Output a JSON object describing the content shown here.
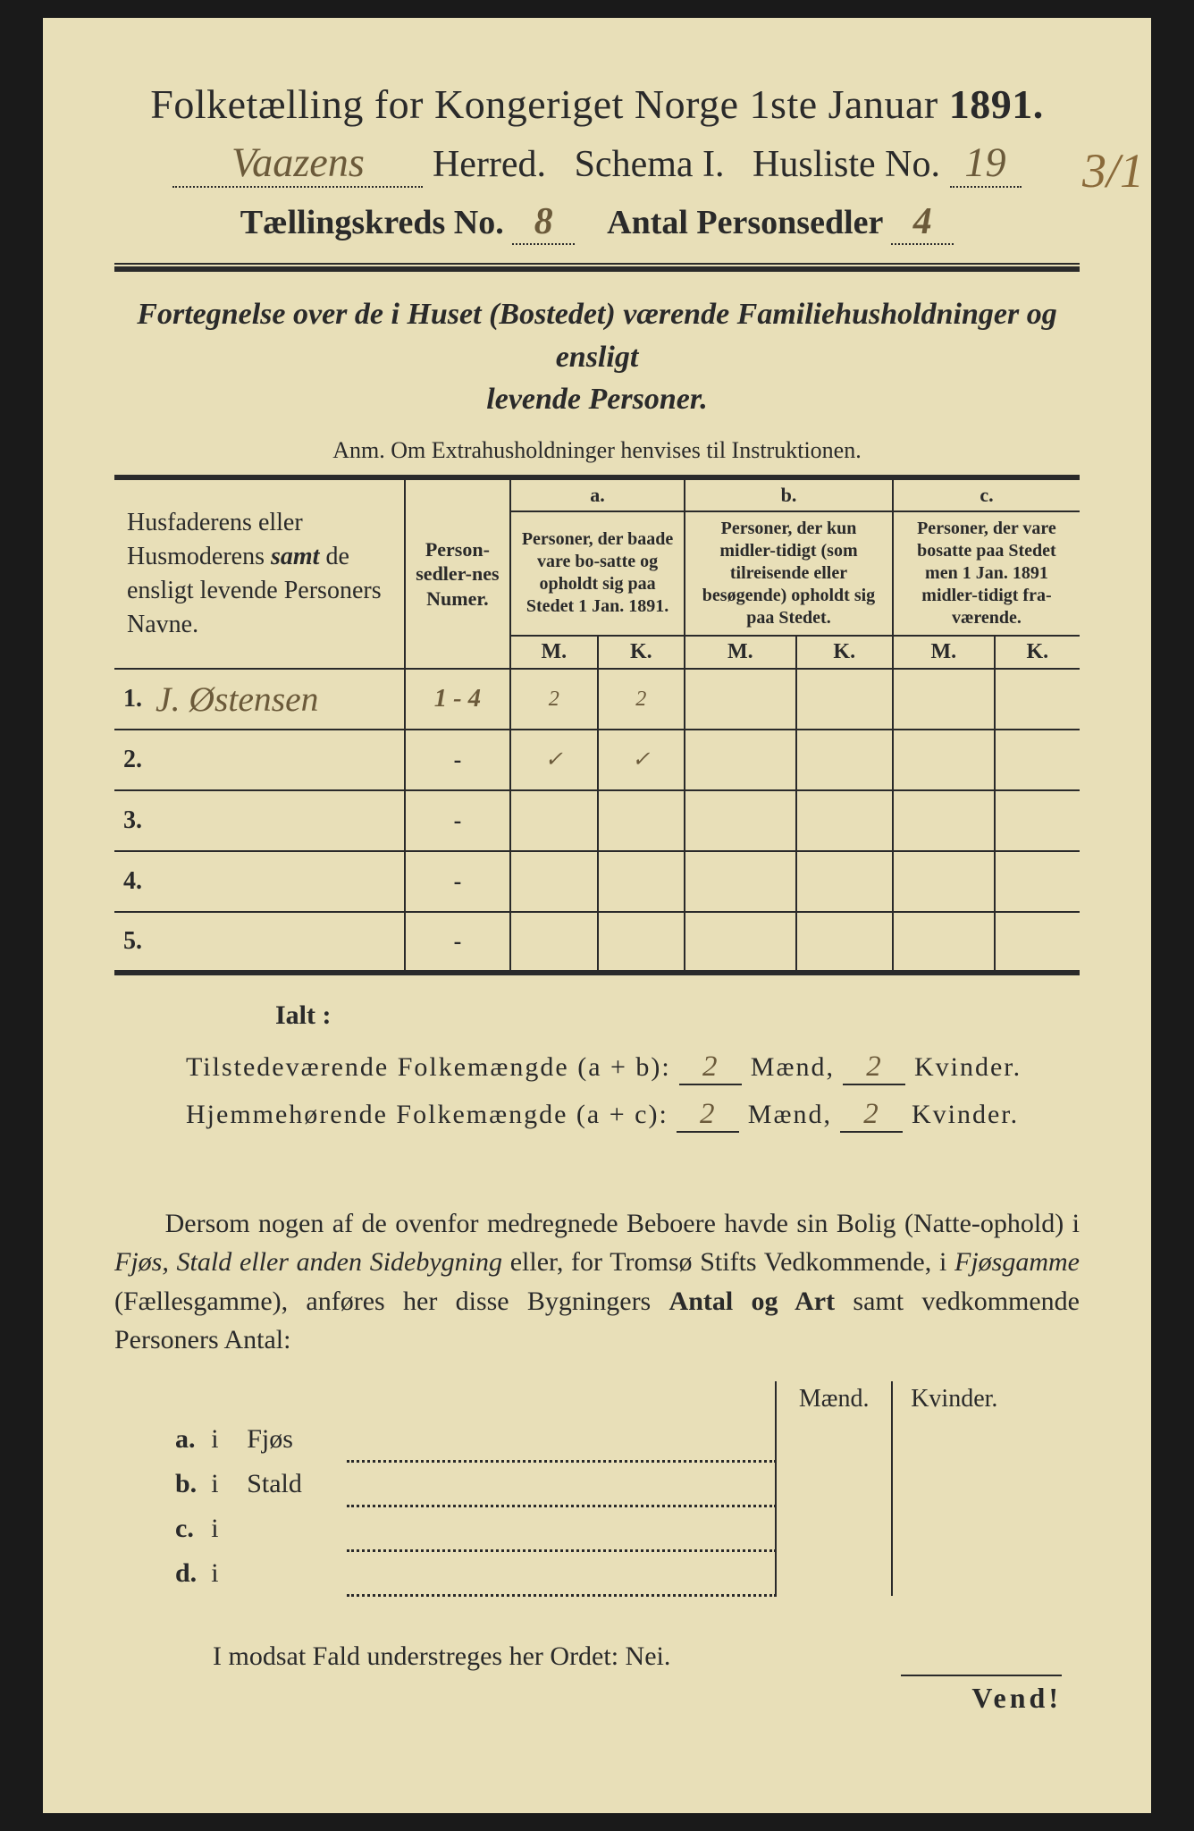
{
  "colors": {
    "paper": "#e8dfb8",
    "ink": "#2a2a2a",
    "handwriting": "#6b5a3a",
    "background": "#1a1a1a"
  },
  "typography": {
    "title_size_pt": 46,
    "body_size_pt": 30,
    "table_header_size_pt": 22,
    "handwriting_family": "Brush Script MT"
  },
  "header": {
    "title_pre": "Folketælling for Kongeriget Norge 1ste Januar",
    "year": "1891.",
    "herred_value": "Vaazens",
    "herred_label": "Herred.",
    "schema_label": "Schema I.",
    "husliste_label": "Husliste No.",
    "husliste_value": "19",
    "kreds_label": "Tællingskreds No.",
    "kreds_value": "8",
    "antal_label": "Antal Personsedler",
    "antal_value": "4",
    "margin_note": "3/1"
  },
  "subtitle": {
    "line1a": "Fortegnelse over de i Huset (Bostedet) værende Familiehusholdninger",
    "line1b": "og ensligt",
    "line2": "levende Personer.",
    "anm": "Anm.  Om Extrahusholdninger henvises til Instruktionen."
  },
  "table": {
    "col_names": "Husfaderens eller Husmoderens ",
    "col_names_samt": "samt",
    "col_names_rest": " de ensligt levende Personers Navne.",
    "col_nums": "Person-sedler-nes Numer.",
    "col_a_letter": "a.",
    "col_a": "Personer, der baade vare bo-satte og opholdt sig paa Stedet 1 Jan. 1891.",
    "col_b_letter": "b.",
    "col_b": "Personer, der kun midler-tidigt (som tilreisende eller besøgende) opholdt sig paa Stedet.",
    "col_c_letter": "c.",
    "col_c": "Personer, der vare bosatte paa Stedet men 1 Jan. 1891 midler-tidigt fra-værende.",
    "M": "M.",
    "K": "K.",
    "rows": [
      {
        "n": "1.",
        "name": "J. Østensen",
        "nums": "1 - 4",
        "aM": "2",
        "aK": "2",
        "bM": "",
        "bK": "",
        "cM": "",
        "cK": ""
      },
      {
        "n": "2.",
        "name": "",
        "nums": "-",
        "aM": "✓",
        "aK": "✓",
        "bM": "",
        "bK": "",
        "cM": "",
        "cK": ""
      },
      {
        "n": "3.",
        "name": "",
        "nums": "-",
        "aM": "",
        "aK": "",
        "bM": "",
        "bK": "",
        "cM": "",
        "cK": ""
      },
      {
        "n": "4.",
        "name": "",
        "nums": "-",
        "aM": "",
        "aK": "",
        "bM": "",
        "bK": "",
        "cM": "",
        "cK": ""
      },
      {
        "n": "5.",
        "name": "",
        "nums": "-",
        "aM": "",
        "aK": "",
        "bM": "",
        "bK": "",
        "cM": "",
        "cK": ""
      }
    ]
  },
  "totals": {
    "ialt": "Ialt :",
    "line1_label": "Tilstedeværende Folkemængde (a + b):",
    "line2_label": "Hjemmehørende Folkemængde (a + c):",
    "maend": "Mænd,",
    "kvinder": "Kvinder.",
    "l1_m": "2",
    "l1_k": "2",
    "l2_m": "2",
    "l2_k": "2"
  },
  "para": {
    "text1": "Dersom nogen af de ovenfor medregnede Beboere havde sin Bolig (Natte-ophold) i ",
    "it1": "Fjøs, Stald eller anden Sidebygning",
    "text2": " eller, for Tromsø Stifts Vedkommende, i ",
    "it2": "Fjøsgamme",
    "text3": " (Fællesgamme), anføres her disse Bygningers ",
    "bd1": "Antal og Art",
    "text4": " samt vedkommende Personers Antal:"
  },
  "bottom": {
    "head_m": "Mænd.",
    "head_k": "Kvinder.",
    "rows": [
      {
        "l": "a.",
        "i": "i",
        "w": "Fjøs"
      },
      {
        "l": "b.",
        "i": "i",
        "w": "Stald"
      },
      {
        "l": "c.",
        "i": "i",
        "w": ""
      },
      {
        "l": "d.",
        "i": "i",
        "w": ""
      }
    ]
  },
  "nei": "I modsat Fald understreges her Ordet: Nei.",
  "vend": "Vend!"
}
